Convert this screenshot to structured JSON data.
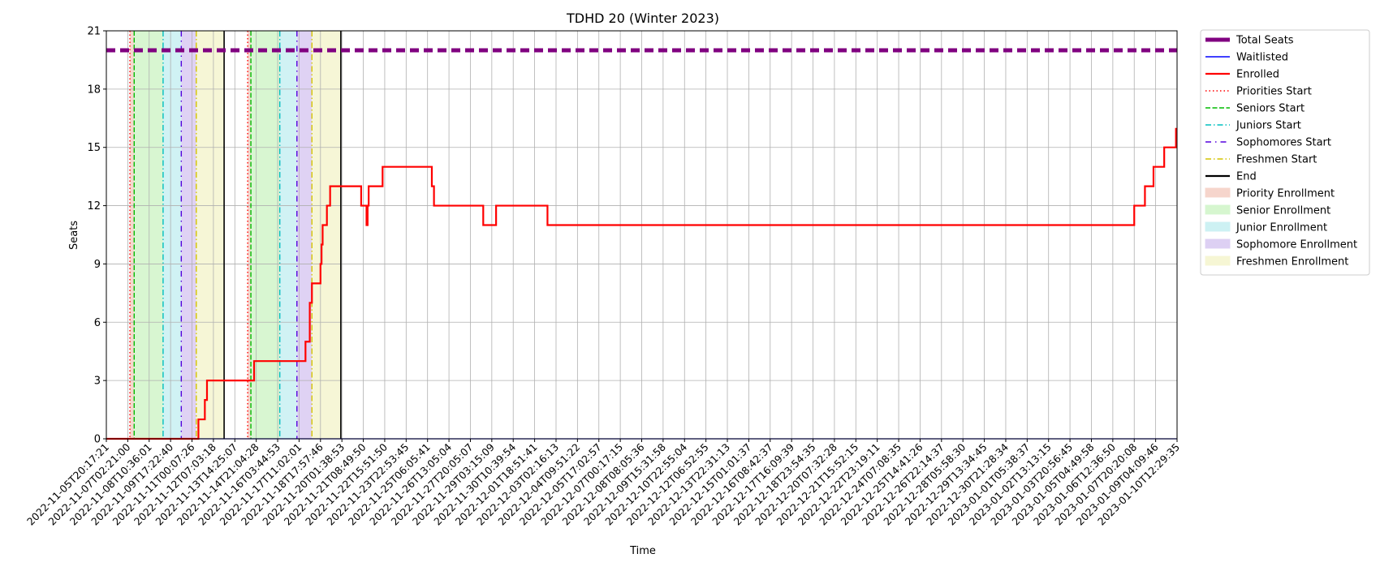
{
  "chart_data": {
    "type": "line",
    "title": "TDHD 20 (Winter 2023)",
    "xlabel": "Time",
    "ylabel": "Seats",
    "ylim": [
      0,
      21
    ],
    "yticks": [
      0,
      3,
      6,
      9,
      12,
      15,
      18,
      21
    ],
    "grid": true,
    "legend_position": "outside-right",
    "colors": {
      "total": "#800080",
      "waitlisted": "#0000ff",
      "enrolled": "#ff0000",
      "priority": "#ff0000",
      "seniors": "#00bb00",
      "juniors": "#00bfbf",
      "sophomores": "#5500dd",
      "freshmen": "#d4c400",
      "end": "#000000",
      "priority_fill": "#f6d5cc",
      "senior_fill": "#d6f6cf",
      "junior_fill": "#cdf1f3",
      "sophomore_fill": "#ddd0f3",
      "freshmen_fill": "#f6f6d4"
    },
    "x_ticks": [
      "2022-11-05T20:17:21",
      "2022-11-07T02:21:00",
      "2022-11-08T10:36:01",
      "2022-11-09T17:22:40",
      "2022-11-11T00:07:26",
      "2022-11-12T07:03:18",
      "2022-11-13T14:25:07",
      "2022-11-14T21:04:28",
      "2022-11-16T03:44:53",
      "2022-11-17T11:02:01",
      "2022-11-18T17:57:46",
      "2022-11-20T01:38:53",
      "2022-11-21T08:49:50",
      "2022-11-22T15:51:50",
      "2022-11-23T22:53:45",
      "2022-11-25T06:05:41",
      "2022-11-26T13:05:04",
      "2022-11-27T20:05:07",
      "2022-11-29T03:15:09",
      "2022-11-30T10:39:54",
      "2022-12-01T18:51:41",
      "2022-12-03T02:16:13",
      "2022-12-04T09:51:22",
      "2022-12-05T17:02:57",
      "2022-12-07T00:17:15",
      "2022-12-08T08:05:36",
      "2022-12-09T15:31:58",
      "2022-12-10T22:55:04",
      "2022-12-12T06:52:55",
      "2022-12-13T22:31:13",
      "2022-12-15T01:01:37",
      "2022-12-16T08:42:37",
      "2022-12-17T16:09:39",
      "2022-12-18T23:54:35",
      "2022-12-20T07:32:28",
      "2022-12-21T15:52:15",
      "2022-12-22T23:19:11",
      "2022-12-24T07:08:35",
      "2022-12-25T14:41:26",
      "2022-12-26T22:14:37",
      "2022-12-28T05:58:30",
      "2022-12-29T13:34:45",
      "2022-12-30T21:28:34",
      "2023-01-01T05:38:37",
      "2023-01-02T13:13:15",
      "2023-01-03T20:56:45",
      "2023-01-05T04:49:58",
      "2023-01-06T12:36:50",
      "2023-01-07T20:20:08",
      "2023-01-09T04:09:46",
      "2023-01-10T12:29:35"
    ],
    "series": [
      {
        "name": "Total Seats",
        "style": "thick-dashed",
        "points": [
          [
            0,
            20
          ],
          [
            50,
            20
          ]
        ]
      },
      {
        "name": "Waitlisted",
        "style": "solid-thin",
        "points": [
          [
            0,
            0
          ],
          [
            50,
            0
          ]
        ]
      },
      {
        "name": "Enrolled",
        "style": "solid-step",
        "points": [
          [
            0,
            0
          ],
          [
            4.3,
            0
          ],
          [
            4.3,
            1
          ],
          [
            4.6,
            1
          ],
          [
            4.6,
            2
          ],
          [
            4.7,
            2
          ],
          [
            4.7,
            3
          ],
          [
            6.9,
            3
          ],
          [
            6.9,
            4
          ],
          [
            9.3,
            4
          ],
          [
            9.3,
            5
          ],
          [
            9.5,
            5
          ],
          [
            9.5,
            7
          ],
          [
            9.6,
            7
          ],
          [
            9.6,
            8
          ],
          [
            10.0,
            8
          ],
          [
            10.0,
            9
          ],
          [
            10.05,
            9
          ],
          [
            10.05,
            10
          ],
          [
            10.1,
            10
          ],
          [
            10.1,
            11
          ],
          [
            10.3,
            11
          ],
          [
            10.3,
            12
          ],
          [
            10.45,
            12
          ],
          [
            10.45,
            13
          ],
          [
            11.9,
            13
          ],
          [
            11.9,
            12
          ],
          [
            12.15,
            12
          ],
          [
            12.15,
            11
          ],
          [
            12.2,
            11
          ],
          [
            12.2,
            12
          ],
          [
            12.25,
            12
          ],
          [
            12.25,
            13
          ],
          [
            12.9,
            13
          ],
          [
            12.9,
            14
          ],
          [
            15.2,
            14
          ],
          [
            15.2,
            13
          ],
          [
            15.3,
            13
          ],
          [
            15.3,
            12
          ],
          [
            17.6,
            12
          ],
          [
            17.6,
            11
          ],
          [
            18.2,
            11
          ],
          [
            18.2,
            12
          ],
          [
            20.6,
            12
          ],
          [
            20.6,
            11
          ],
          [
            48.0,
            11
          ],
          [
            48.0,
            12
          ],
          [
            48.5,
            12
          ],
          [
            48.5,
            13
          ],
          [
            48.9,
            13
          ],
          [
            48.9,
            14
          ],
          [
            49.4,
            14
          ],
          [
            49.4,
            15
          ],
          [
            49.95,
            15
          ],
          [
            49.95,
            16
          ]
        ]
      }
    ],
    "markers": [
      {
        "name": "Priorities Start",
        "style": "dotted",
        "color_key": "priority",
        "x": [
          1.1,
          6.6
        ]
      },
      {
        "name": "Seniors Start",
        "style": "dashed",
        "color_key": "seniors",
        "x": [
          1.3,
          6.75
        ]
      },
      {
        "name": "Juniors Start",
        "style": "dashdot",
        "color_key": "juniors",
        "x": [
          2.65,
          8.1
        ]
      },
      {
        "name": "Sophomores Start",
        "style": "loose-dashdot",
        "color_key": "sophomores",
        "x": [
          3.5,
          8.9
        ]
      },
      {
        "name": "Freshmen Start",
        "style": "dashdot",
        "color_key": "freshmen",
        "x": [
          4.2,
          9.6
        ]
      },
      {
        "name": "End",
        "style": "solid",
        "color_key": "end",
        "x": [
          5.5,
          10.95
        ]
      }
    ],
    "regions": [
      {
        "name": "Priority Enrollment",
        "color_key": "priority_fill",
        "spans": [
          [
            1.1,
            1.3
          ],
          [
            6.6,
            6.75
          ]
        ]
      },
      {
        "name": "Senior Enrollment",
        "color_key": "senior_fill",
        "spans": [
          [
            1.3,
            2.65
          ],
          [
            6.75,
            8.1
          ]
        ]
      },
      {
        "name": "Junior Enrollment",
        "color_key": "junior_fill",
        "spans": [
          [
            2.65,
            3.5
          ],
          [
            8.1,
            8.9
          ]
        ]
      },
      {
        "name": "Sophomore Enrollment",
        "color_key": "sophomore_fill",
        "spans": [
          [
            3.5,
            4.2
          ],
          [
            8.9,
            9.6
          ]
        ]
      },
      {
        "name": "Freshmen Enrollment",
        "color_key": "freshmen_fill",
        "spans": [
          [
            4.2,
            5.5
          ],
          [
            9.6,
            10.95
          ]
        ]
      }
    ],
    "legend": [
      {
        "label": "Total Seats",
        "kind": "line",
        "color_key": "total",
        "style": "thick"
      },
      {
        "label": "Waitlisted",
        "kind": "line",
        "color_key": "waitlisted",
        "style": "solid-thin"
      },
      {
        "label": "Enrolled",
        "kind": "line",
        "color_key": "enrolled",
        "style": "solid"
      },
      {
        "label": "Priorities Start",
        "kind": "line",
        "color_key": "priority",
        "style": "dotted"
      },
      {
        "label": "Seniors Start",
        "kind": "line",
        "color_key": "seniors",
        "style": "dashed"
      },
      {
        "label": "Juniors Start",
        "kind": "line",
        "color_key": "juniors",
        "style": "dashdot"
      },
      {
        "label": "Sophomores Start",
        "kind": "line",
        "color_key": "sophomores",
        "style": "loose-dashdot"
      },
      {
        "label": "Freshmen Start",
        "kind": "line",
        "color_key": "freshmen",
        "style": "dashdot"
      },
      {
        "label": "End",
        "kind": "line",
        "color_key": "end",
        "style": "solid"
      },
      {
        "label": "Priority Enrollment",
        "kind": "patch",
        "color_key": "priority_fill"
      },
      {
        "label": "Senior Enrollment",
        "kind": "patch",
        "color_key": "senior_fill"
      },
      {
        "label": "Junior Enrollment",
        "kind": "patch",
        "color_key": "junior_fill"
      },
      {
        "label": "Sophomore Enrollment",
        "kind": "patch",
        "color_key": "sophomore_fill"
      },
      {
        "label": "Freshmen Enrollment",
        "kind": "patch",
        "color_key": "freshmen_fill"
      }
    ]
  }
}
